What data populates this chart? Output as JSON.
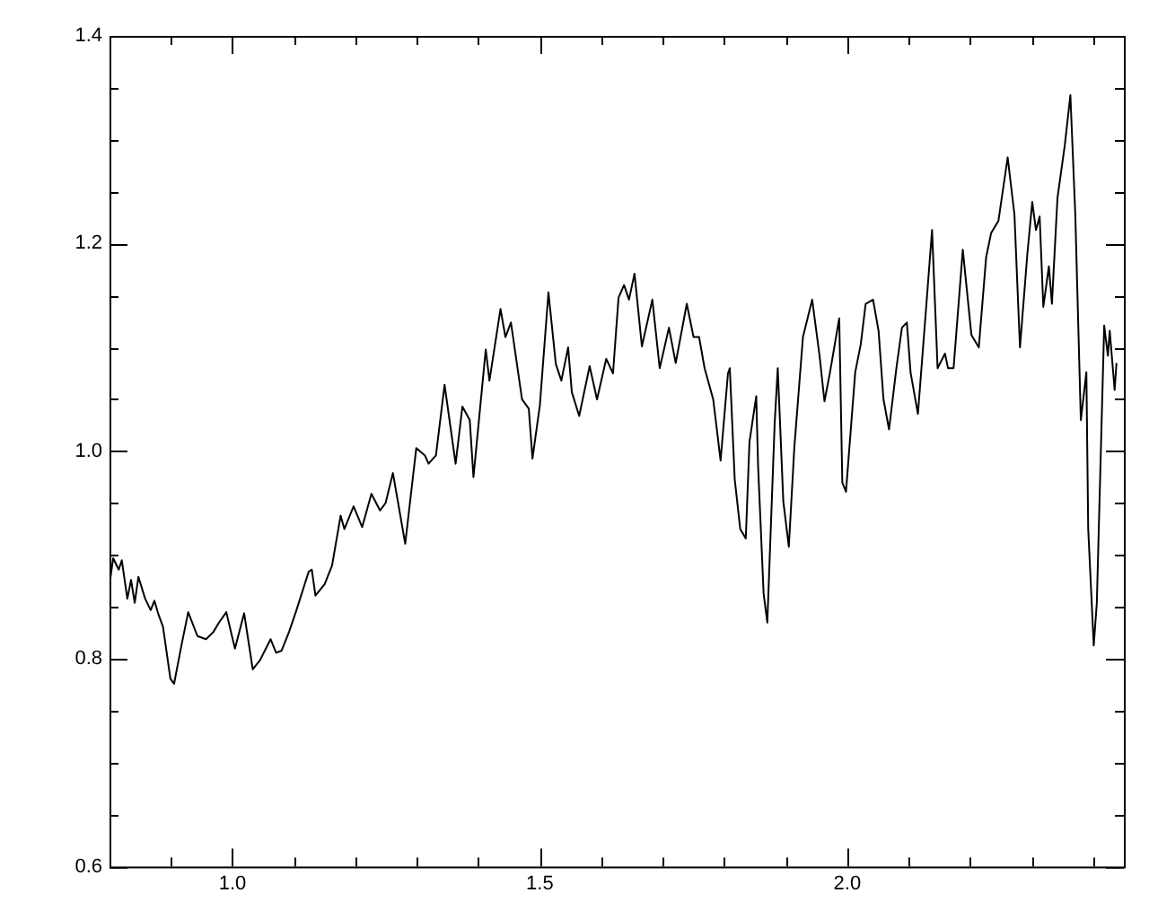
{
  "chart_data": {
    "type": "line",
    "marker": "none",
    "grid": false,
    "legend": false,
    "xlim": [
      0.8,
      2.45
    ],
    "ylim": [
      0.6,
      1.4
    ],
    "xticks": [
      {
        "value": 0.9,
        "label": null
      },
      {
        "value": 1.0,
        "label": "1.0"
      },
      {
        "value": 1.1,
        "label": null
      },
      {
        "value": 1.2,
        "label": null
      },
      {
        "value": 1.3,
        "label": null
      },
      {
        "value": 1.4,
        "label": null
      },
      {
        "value": 1.5,
        "label": "1.5"
      },
      {
        "value": 1.6,
        "label": null
      },
      {
        "value": 1.7,
        "label": null
      },
      {
        "value": 1.8,
        "label": null
      },
      {
        "value": 1.9,
        "label": null
      },
      {
        "value": 2.0,
        "label": "2.0"
      },
      {
        "value": 2.1,
        "label": null
      },
      {
        "value": 2.2,
        "label": null
      },
      {
        "value": 2.3,
        "label": null
      },
      {
        "value": 2.4,
        "label": null
      }
    ],
    "yticks": [
      {
        "value": 0.6,
        "label": "0.6"
      },
      {
        "value": 0.65,
        "label": null
      },
      {
        "value": 0.7,
        "label": null
      },
      {
        "value": 0.75,
        "label": null
      },
      {
        "value": 0.8,
        "label": "0.8"
      },
      {
        "value": 0.85,
        "label": null
      },
      {
        "value": 0.9,
        "label": null
      },
      {
        "value": 0.95,
        "label": null
      },
      {
        "value": 1.0,
        "label": "1.0"
      },
      {
        "value": 1.05,
        "label": null
      },
      {
        "value": 1.1,
        "label": null
      },
      {
        "value": 1.15,
        "label": null
      },
      {
        "value": 1.2,
        "label": "1.2"
      },
      {
        "value": 1.25,
        "label": null
      },
      {
        "value": 1.3,
        "label": null
      },
      {
        "value": 1.35,
        "label": null
      },
      {
        "value": 1.4,
        "label": "1.4"
      }
    ],
    "series": [
      {
        "color": "#000000",
        "x": [
          0.8,
          0.806,
          0.815,
          0.82,
          0.829,
          0.835,
          0.841,
          0.847,
          0.858,
          0.867,
          0.873,
          0.879,
          0.887,
          0.899,
          0.905,
          0.917,
          0.928,
          0.943,
          0.957,
          0.969,
          0.978,
          0.99,
          1.004,
          1.019,
          1.033,
          1.045,
          1.062,
          1.071,
          1.08,
          1.092,
          1.103,
          1.124,
          1.129,
          1.135,
          1.15,
          1.162,
          1.176,
          1.182,
          1.197,
          1.211,
          1.226,
          1.24,
          1.249,
          1.261,
          1.281,
          1.299,
          1.313,
          1.319,
          1.331,
          1.345,
          1.363,
          1.374,
          1.386,
          1.392,
          1.412,
          1.418,
          1.436,
          1.444,
          1.453,
          1.471,
          1.482,
          1.488,
          1.5,
          1.514,
          1.526,
          1.535,
          1.546,
          1.552,
          1.564,
          1.581,
          1.593,
          1.608,
          1.619,
          1.628,
          1.637,
          1.645,
          1.654,
          1.666,
          1.683,
          1.695,
          1.71,
          1.721,
          1.739,
          1.75,
          1.759,
          1.768,
          1.782,
          1.794,
          1.806,
          1.809,
          1.817,
          1.826,
          1.835,
          1.841,
          1.852,
          1.855,
          1.864,
          1.87,
          1.882,
          1.887,
          1.896,
          1.905,
          1.914,
          1.928,
          1.943,
          1.955,
          1.963,
          1.972,
          1.987,
          1.992,
          1.998,
          2.013,
          2.022,
          2.03,
          2.042,
          2.051,
          2.059,
          2.068,
          2.08,
          2.089,
          2.097,
          2.103,
          2.115,
          2.127,
          2.138,
          2.147,
          2.159,
          2.164,
          2.173,
          2.188,
          2.202,
          2.214,
          2.226,
          2.234,
          2.246,
          2.261,
          2.272,
          2.281,
          2.293,
          2.301,
          2.307,
          2.313,
          2.319,
          2.328,
          2.333,
          2.342,
          2.354,
          2.363,
          2.371,
          2.38,
          2.389,
          2.392,
          2.401,
          2.406,
          2.418,
          2.424,
          2.427,
          2.435,
          2.438
        ],
        "values": [
          0.872,
          0.897,
          0.886,
          0.895,
          0.858,
          0.876,
          0.854,
          0.879,
          0.858,
          0.847,
          0.856,
          0.844,
          0.831,
          0.781,
          0.776,
          0.813,
          0.845,
          0.822,
          0.819,
          0.826,
          0.835,
          0.845,
          0.81,
          0.844,
          0.79,
          0.799,
          0.819,
          0.806,
          0.808,
          0.826,
          0.845,
          0.884,
          0.886,
          0.861,
          0.872,
          0.89,
          0.938,
          0.925,
          0.947,
          0.927,
          0.959,
          0.943,
          0.95,
          0.979,
          0.911,
          1.003,
          0.996,
          0.988,
          0.996,
          1.064,
          0.988,
          1.043,
          1.03,
          0.975,
          1.098,
          1.068,
          1.137,
          1.11,
          1.124,
          1.05,
          1.041,
          0.993,
          1.044,
          1.153,
          1.084,
          1.068,
          1.1,
          1.057,
          1.034,
          1.082,
          1.05,
          1.089,
          1.075,
          1.148,
          1.16,
          1.146,
          1.171,
          1.101,
          1.146,
          1.08,
          1.119,
          1.085,
          1.142,
          1.11,
          1.11,
          1.08,
          1.05,
          0.991,
          1.075,
          1.08,
          0.973,
          0.925,
          0.916,
          1.009,
          1.053,
          0.986,
          0.863,
          0.835,
          1.027,
          1.08,
          0.952,
          0.908,
          1.004,
          1.11,
          1.146,
          1.092,
          1.048,
          1.076,
          1.128,
          0.97,
          0.961,
          1.076,
          1.103,
          1.142,
          1.146,
          1.116,
          1.05,
          1.021,
          1.08,
          1.119,
          1.124,
          1.076,
          1.036,
          1.128,
          1.213,
          1.08,
          1.094,
          1.08,
          1.08,
          1.194,
          1.112,
          1.1,
          1.187,
          1.21,
          1.222,
          1.283,
          1.228,
          1.1,
          1.19,
          1.24,
          1.213,
          1.226,
          1.139,
          1.178,
          1.142,
          1.244,
          1.295,
          1.343,
          1.228,
          1.03,
          1.076,
          0.925,
          0.813,
          0.854,
          1.121,
          1.092,
          1.116,
          1.059,
          1.085
        ]
      }
    ]
  }
}
